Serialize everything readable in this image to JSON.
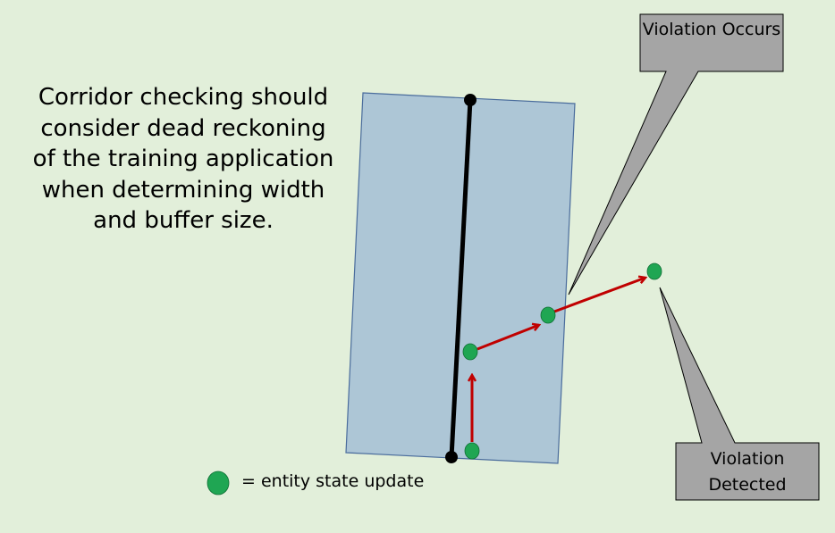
{
  "main_text": "Corridor checking should consider dead reckoning of the training application when determining width and buffer size.",
  "callouts": {
    "violation_occurs": "Violation Occurs",
    "violation_detected": "Violation Detected"
  },
  "legend": {
    "text": "= entity state update"
  },
  "colors": {
    "background": "#e2efda",
    "corridor_fill": "#adc6d6",
    "corridor_stroke": "#4a6c9c",
    "callout_fill": "#a5a5a5",
    "update_dot": "#1fa653",
    "arrow": "#c00000"
  }
}
